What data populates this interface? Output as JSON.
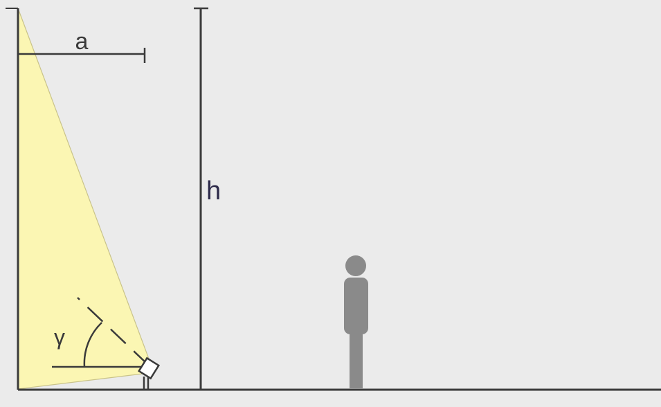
{
  "diagram": {
    "labels": {
      "a": "a",
      "h": "h",
      "gamma": "γ"
    },
    "colors": {
      "background": "#ebebeb",
      "light_beam": "#fbf6b3",
      "beam_edge": "#c9c38a",
      "lines": "#3a3a3a",
      "person": "#8a8a8a",
      "h_label": "#2d2a4a"
    }
  }
}
